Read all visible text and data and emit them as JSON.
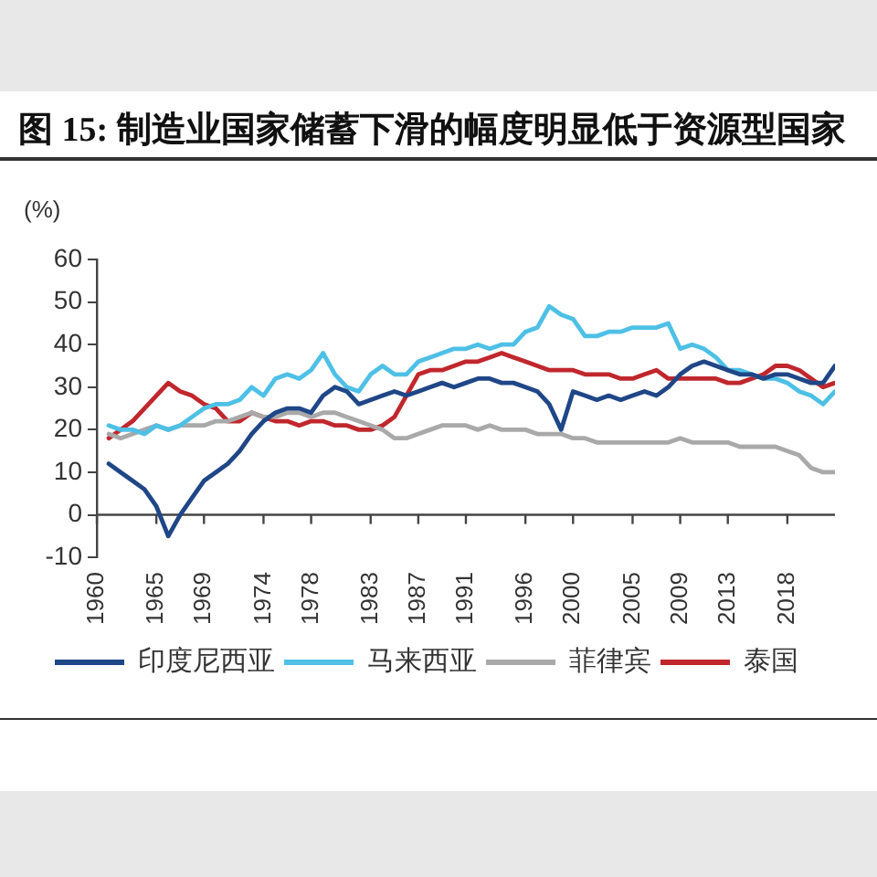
{
  "chart_data": {
    "type": "line",
    "title": "图 15: 制造业国家储蓄下滑的幅度明显低于资源型国家",
    "ylabel": "(%)",
    "x": [
      1961,
      1962,
      1963,
      1964,
      1965,
      1966,
      1967,
      1968,
      1969,
      1970,
      1971,
      1972,
      1973,
      1974,
      1975,
      1976,
      1977,
      1978,
      1979,
      1980,
      1981,
      1982,
      1983,
      1984,
      1985,
      1986,
      1987,
      1988,
      1989,
      1990,
      1991,
      1992,
      1993,
      1994,
      1995,
      1996,
      1997,
      1998,
      1999,
      2000,
      2001,
      2002,
      2003,
      2004,
      2005,
      2006,
      2007,
      2008,
      2009,
      2010,
      2011,
      2012,
      2013,
      2014,
      2015,
      2016,
      2017,
      2018,
      2019,
      2020,
      2021,
      2022
    ],
    "series": [
      {
        "name": "印度尼西亚",
        "color": "#1f4687",
        "values": [
          12,
          10,
          8,
          6,
          2,
          -5,
          0,
          4,
          8,
          10,
          12,
          15,
          19,
          22,
          24,
          25,
          25,
          24,
          28,
          30,
          29,
          26,
          27,
          28,
          29,
          28,
          29,
          30,
          31,
          30,
          31,
          32,
          32,
          31,
          31,
          30,
          29,
          26,
          20,
          29,
          28,
          27,
          28,
          27,
          28,
          29,
          28,
          30,
          33,
          35,
          36,
          35,
          34,
          33,
          33,
          32,
          33,
          33,
          32,
          31,
          31,
          35
        ]
      },
      {
        "name": "马来西亚",
        "color": "#4ec0e6",
        "values": [
          21,
          20,
          20,
          19,
          21,
          20,
          21,
          23,
          25,
          26,
          26,
          27,
          30,
          28,
          32,
          33,
          32,
          34,
          38,
          33,
          30,
          29,
          33,
          35,
          33,
          33,
          36,
          37,
          38,
          39,
          39,
          40,
          39,
          40,
          40,
          43,
          44,
          49,
          47,
          46,
          42,
          42,
          43,
          43,
          44,
          44,
          44,
          45,
          39,
          40,
          39,
          37,
          34,
          34,
          33,
          32,
          32,
          31,
          29,
          28,
          26,
          29
        ]
      },
      {
        "name": "菲律宾",
        "color": "#a9a9a9",
        "values": [
          19,
          18,
          19,
          20,
          21,
          20,
          21,
          21,
          21,
          22,
          22,
          23,
          24,
          23,
          23,
          24,
          24,
          23,
          24,
          24,
          23,
          22,
          21,
          20,
          18,
          18,
          19,
          20,
          21,
          21,
          21,
          20,
          21,
          20,
          20,
          20,
          19,
          19,
          19,
          18,
          18,
          17,
          17,
          17,
          17,
          17,
          17,
          17,
          18,
          17,
          17,
          17,
          17,
          16,
          16,
          16,
          16,
          15,
          14,
          11,
          10,
          10
        ]
      },
      {
        "name": "泰国",
        "color": "#c0272d",
        "values": [
          18,
          20,
          22,
          25,
          28,
          31,
          29,
          28,
          26,
          25,
          22,
          22,
          24,
          23,
          22,
          22,
          21,
          22,
          22,
          21,
          21,
          20,
          20,
          21,
          23,
          28,
          33,
          34,
          34,
          35,
          36,
          36,
          37,
          38,
          37,
          36,
          35,
          34,
          34,
          34,
          33,
          33,
          33,
          32,
          32,
          33,
          34,
          32,
          32,
          32,
          32,
          32,
          31,
          31,
          32,
          33,
          35,
          35,
          34,
          32,
          30,
          31
        ]
      }
    ],
    "xlim": [
      1960,
      2022
    ],
    "xticks": [
      1960,
      1965,
      1969,
      1974,
      1978,
      1983,
      1987,
      1991,
      1996,
      2000,
      2005,
      2009,
      2013,
      2018
    ],
    "ylim": [
      -10,
      60
    ],
    "yticks": [
      -10,
      0,
      10,
      20,
      30,
      40,
      50,
      60
    ],
    "grid": false,
    "legend": "bottom",
    "marker": "none",
    "line_style": "solid"
  }
}
